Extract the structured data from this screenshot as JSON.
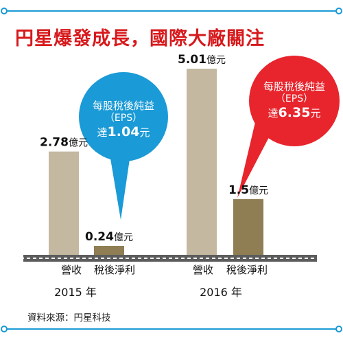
{
  "title": "円星爆發成長，國際大廠關注",
  "source": "資料來源：円星科技",
  "colors": {
    "accent_blue": "#1a9ad6",
    "title_red": "#d7191c",
    "bubble_red": "#e8242c",
    "revenue_bar": "#c4b8a0",
    "profit_bar": "#8f7e54",
    "floor": "#5c5c5c"
  },
  "unit": "億元",
  "bubbles": [
    {
      "line1": "每股稅後純益",
      "line2": "（EPS）",
      "prefix": "達",
      "value": "1.04",
      "unit": "元"
    },
    {
      "line1": "每股稅後純益",
      "line2": "（EPS）",
      "prefix": "達",
      "value": "6.35",
      "unit": "元"
    }
  ],
  "chart_data": {
    "type": "bar",
    "title": "円星爆發成長，國際大廠關注",
    "categories": [
      "2015 年",
      "2016 年"
    ],
    "bar_labels": [
      "營收",
      "稅後淨利"
    ],
    "unit": "億元",
    "series": [
      {
        "name": "營收",
        "values": [
          2.78,
          5.01
        ]
      },
      {
        "name": "稅後淨利",
        "values": [
          0.24,
          1.5
        ]
      }
    ],
    "value_labels": [
      [
        "2.78",
        "0.24"
      ],
      [
        "5.01",
        "1.5"
      ]
    ],
    "annotations": [
      "每股稅後純益（EPS）達1.04元",
      "每股稅後純益（EPS）達6.35元"
    ],
    "ylim": [
      0,
      5.01
    ],
    "grid": false,
    "legend": "none"
  }
}
